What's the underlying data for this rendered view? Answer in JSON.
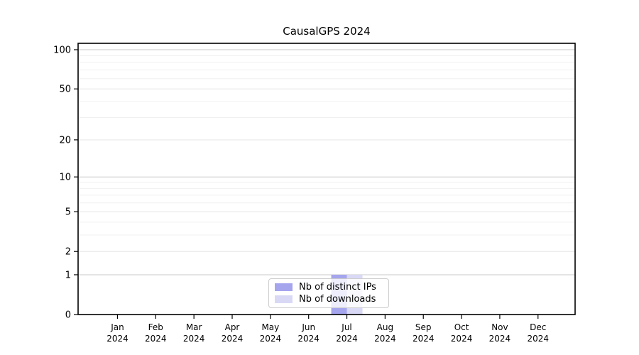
{
  "title": "CausalGPS 2024",
  "chart_data": {
    "type": "bar",
    "title": "CausalGPS 2024",
    "categories": [
      "Jan",
      "Feb",
      "Mar",
      "Apr",
      "May",
      "Jun",
      "Jul",
      "Aug",
      "Sep",
      "Oct",
      "Nov",
      "Dec"
    ],
    "year_label": "2024",
    "xlabel": "",
    "ylabel": "",
    "y_ticks": [
      0,
      1,
      2,
      5,
      10,
      20,
      50,
      100
    ],
    "y_scale": "log(1+x)",
    "ylim": [
      0,
      101
    ],
    "grid": true,
    "legend_position": "bottom-center-inside",
    "series": [
      {
        "name": "Nb of distinct IPs",
        "color": "#a5a5ee",
        "values": [
          0,
          0,
          0,
          0,
          0,
          0,
          1,
          0,
          0,
          0,
          0,
          0
        ]
      },
      {
        "name": "Nb of downloads",
        "color": "#d9d9f6",
        "values": [
          0,
          0,
          0,
          0,
          0,
          0,
          1,
          0,
          0,
          0,
          0,
          0
        ]
      }
    ]
  }
}
